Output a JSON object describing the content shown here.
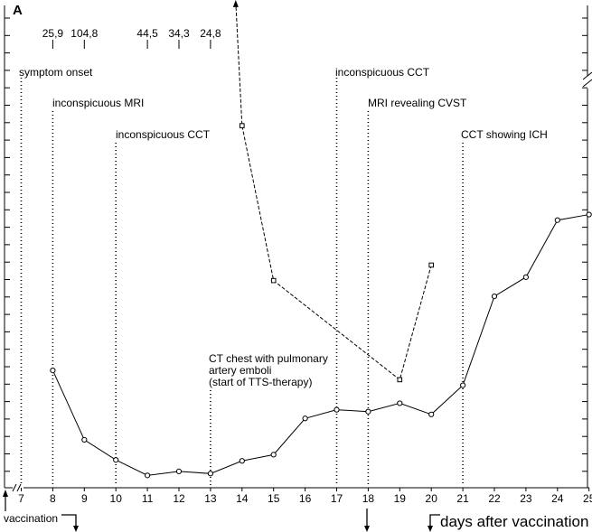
{
  "chart_data": {
    "type": "line",
    "panel_label": "A",
    "x_axis": {
      "ticks": [
        7,
        8,
        9,
        10,
        11,
        12,
        13,
        14,
        15,
        16,
        17,
        18,
        19,
        20,
        21,
        22,
        23,
        24,
        25
      ],
      "xlim": [
        6.5,
        25
      ],
      "title": "days after vaccination",
      "origin_label": "vaccination"
    },
    "series": [
      {
        "style": "solid",
        "marker": "circle",
        "x": [
          8,
          9,
          10,
          11,
          12,
          13,
          14,
          15,
          16,
          17,
          18,
          19,
          20,
          21,
          22,
          23,
          24,
          25
        ],
        "y": [
          0.37,
          0.146,
          0.081,
          0.031,
          0.044,
          0.037,
          0.078,
          0.098,
          0.215,
          0.243,
          0.237,
          0.264,
          0.228,
          0.322,
          0.609,
          0.671,
          0.855,
          0.873
        ]
      },
      {
        "style": "dashed",
        "marker": "square",
        "x": [
          13.8,
          14,
          15,
          19,
          20
        ],
        "y": [
          1.56,
          1.16,
          0.66,
          0.34,
          0.71
        ]
      }
    ],
    "top_values": [
      {
        "x": 8,
        "label": "25,9"
      },
      {
        "x": 9,
        "label": "104,8"
      },
      {
        "x": 11,
        "label": "44,5"
      },
      {
        "x": 12,
        "label": "34,3"
      },
      {
        "x": 13,
        "label": "24,8"
      }
    ],
    "events": [
      {
        "x": 7,
        "lines": [
          "symptom onset"
        ]
      },
      {
        "x": 8,
        "lines": [
          "inconspicuous MRI"
        ]
      },
      {
        "x": 10,
        "lines": [
          "inconspicuous CCT"
        ]
      },
      {
        "x": 13,
        "lines": [
          "CT chest with pulmonary",
          "artery emboli",
          "(start of TTS-therapy)"
        ]
      },
      {
        "x": 17,
        "lines": [
          "inconspicuous CCT"
        ]
      },
      {
        "x": 18,
        "lines": [
          "MRI revealing CVST"
        ]
      },
      {
        "x": 21,
        "lines": [
          "CCT showing ICH"
        ]
      }
    ],
    "grid": false,
    "legend": "none"
  }
}
